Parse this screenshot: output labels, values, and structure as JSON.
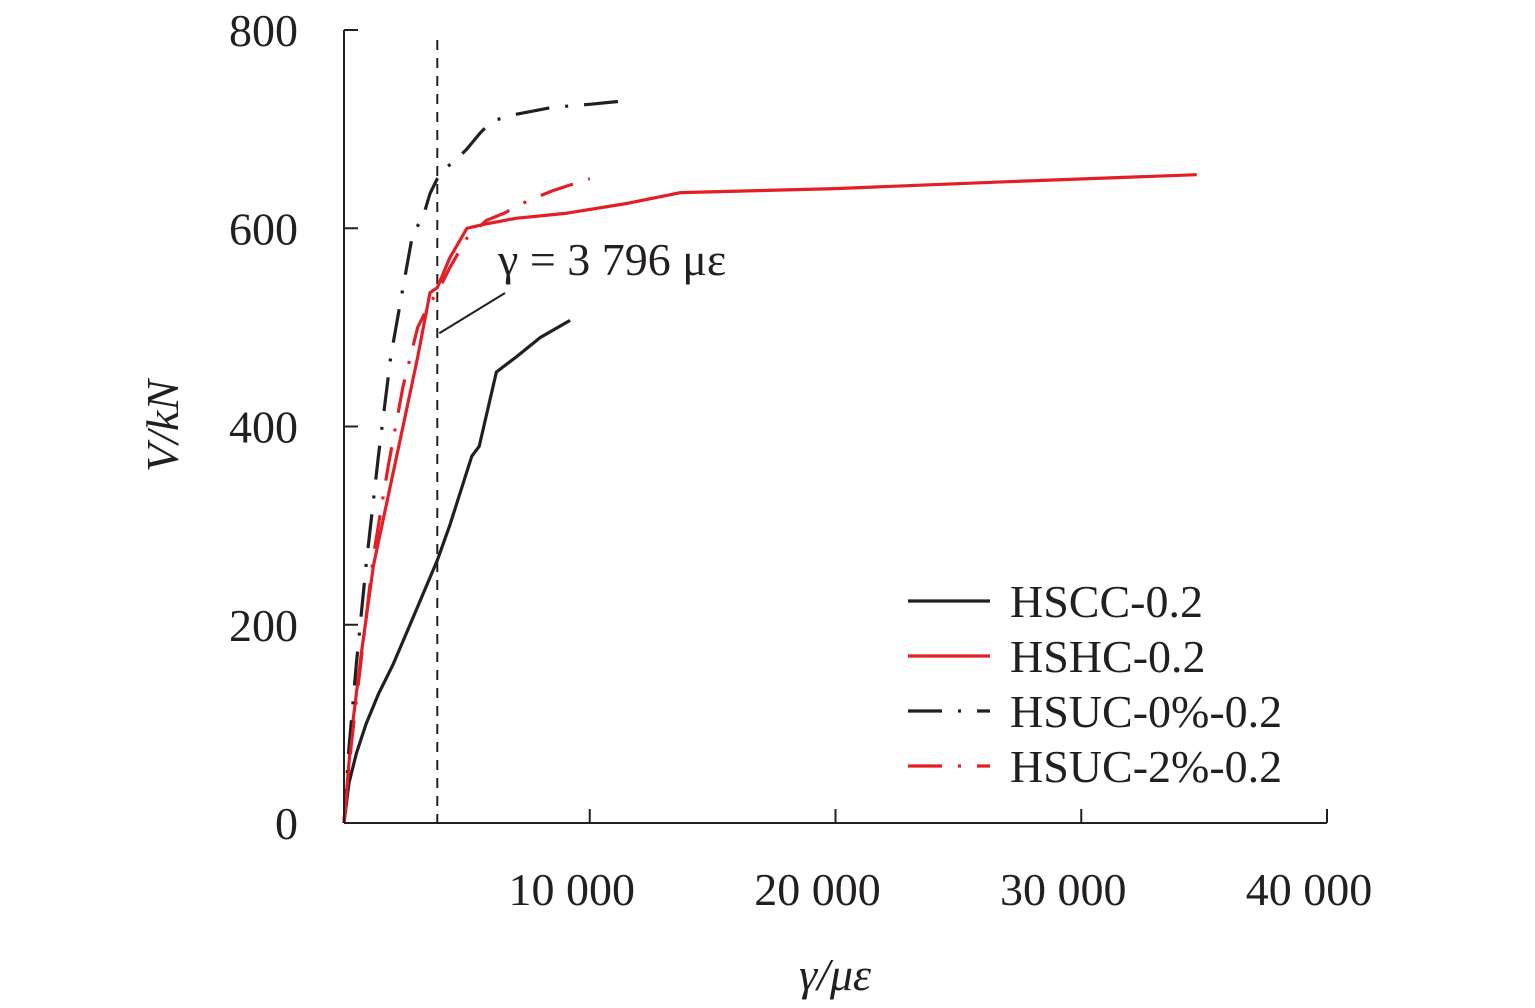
{
  "chart_data": {
    "type": "line",
    "xlabel": "γ/με",
    "ylabel": "V/kN",
    "xlim": [
      0,
      40000
    ],
    "ylim": [
      0,
      800
    ],
    "x_ticks": [
      10000,
      20000,
      30000,
      40000
    ],
    "x_tick_labels": [
      "10 000",
      "20 000",
      "30 000",
      "40 000"
    ],
    "y_ticks": [
      0,
      200,
      400,
      600,
      800
    ],
    "y_tick_labels": [
      "0",
      "200",
      "400",
      "600",
      "800"
    ],
    "grid": false,
    "legend_position": "bottom-right",
    "reference_line": {
      "x": 3796,
      "style": "dashed",
      "color": "#231f20"
    },
    "annotation": {
      "text": "γ = 3 796 με",
      "target": [
        3796,
        490
      ]
    },
    "series": [
      {
        "name": "HSCC-0.2",
        "color": "#231f20",
        "dash": "solid",
        "x": [
          0,
          200,
          500,
          900,
          1400,
          2000,
          2600,
          3200,
          3796,
          4300,
          5200,
          5500,
          6200,
          7000,
          8000,
          9200
        ],
        "y": [
          0,
          40,
          70,
          100,
          130,
          160,
          195,
          230,
          265,
          300,
          370,
          380,
          455,
          470,
          490,
          507
        ]
      },
      {
        "name": "HSHC-0.2",
        "color": "#e31e24",
        "dash": "solid",
        "x": [
          0,
          300,
          700,
          1200,
          1800,
          2400,
          3000,
          3500,
          3796,
          4300,
          5000,
          5700,
          7000,
          9000,
          11500,
          13700,
          20000,
          27000,
          34700
        ],
        "y": [
          0,
          90,
          170,
          260,
          330,
          400,
          470,
          535,
          540,
          570,
          600,
          604,
          610,
          615,
          625,
          636,
          640,
          647,
          654
        ]
      },
      {
        "name": "HSUC-0%-0.2",
        "color": "#231f20",
        "dash": "dashdot",
        "x": [
          0,
          200,
          500,
          900,
          1400,
          1900,
          2400,
          2800,
          3200,
          3500,
          3796,
          4100,
          4600,
          5000,
          5500,
          6000,
          7000,
          8500,
          10000,
          11200
        ],
        "y": [
          0,
          75,
          160,
          260,
          370,
          470,
          540,
          595,
          610,
          635,
          650,
          660,
          670,
          680,
          695,
          708,
          715,
          722,
          725,
          728
        ]
      },
      {
        "name": "HSUC-2%-0.2",
        "color": "#e31e24",
        "dash": "dashdot",
        "x": [
          0,
          300,
          700,
          1200,
          1800,
          2400,
          3000,
          3500,
          3796,
          4300,
          5000,
          5800,
          6500,
          7500,
          8500,
          10000
        ],
        "y": [
          0,
          80,
          165,
          270,
          360,
          440,
          500,
          525,
          535,
          560,
          590,
          608,
          615,
          628,
          638,
          650
        ]
      }
    ]
  }
}
